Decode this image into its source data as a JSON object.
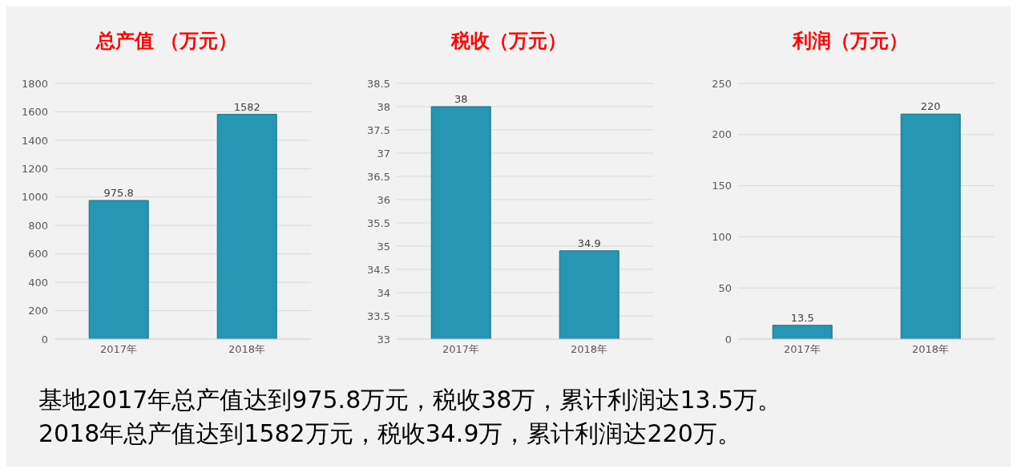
{
  "chart_data": [
    {
      "type": "bar",
      "title": "总产值 （万元）",
      "categories": [
        "2017年",
        "2018年"
      ],
      "values": [
        975.8,
        1582
      ],
      "color": "#2596b4",
      "ylim": [
        0,
        1800
      ],
      "yticks": [
        0,
        200,
        400,
        600,
        800,
        1000,
        1200,
        1400,
        1600,
        1800
      ],
      "grid": "y",
      "data_labels": true
    },
    {
      "type": "bar",
      "title": "税收（万元）",
      "categories": [
        "2017年",
        "2018年"
      ],
      "values": [
        38,
        34.9
      ],
      "color": "#2596b4",
      "ylim": [
        33,
        38.5
      ],
      "yticks": [
        33,
        33.5,
        34,
        34.5,
        35,
        35.5,
        36,
        36.5,
        37,
        37.5,
        38,
        38.5
      ],
      "grid": "y",
      "data_labels": true
    },
    {
      "type": "bar",
      "title": "利润（万元）",
      "categories": [
        "2017年",
        "2018年"
      ],
      "values": [
        13.5,
        220
      ],
      "color": "#2596b4",
      "ylim": [
        0,
        250
      ],
      "yticks": [
        0,
        50,
        100,
        150,
        200,
        250
      ],
      "grid": "y",
      "data_labels": true
    },
    {
      "type": "other",
      "annotations": [
        "基地2017年总产值达到975.8万元，税收38万，累计利润达13.5万。",
        "2018年总产值达到1582万元，税收34.9万，累计利润达220万。"
      ]
    }
  ]
}
